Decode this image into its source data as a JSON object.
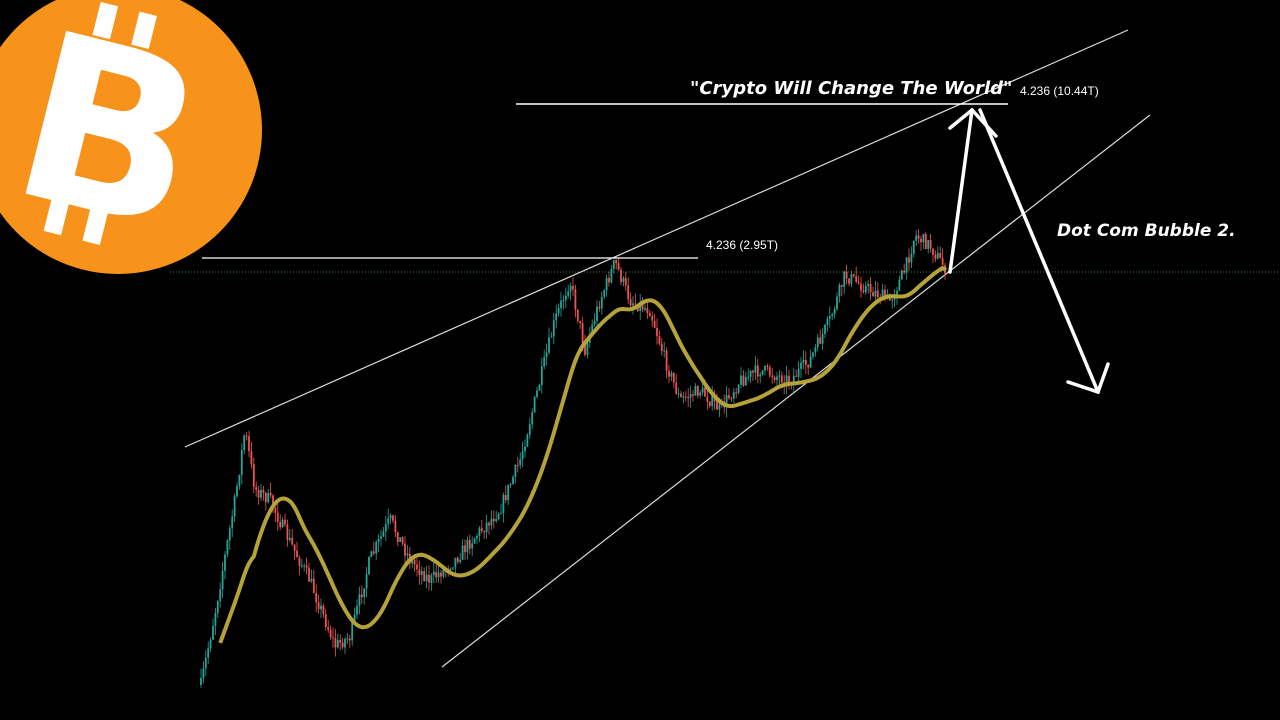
{
  "logo": {
    "name": "bitcoin-logo",
    "text": "₿",
    "color": "#F7931A"
  },
  "annotations": {
    "top_quote": "\"Crypto Will Change The World\"",
    "upper_fib": "4.236 (10.44T)",
    "lower_fib": "4.236 (2.95T)",
    "right_note": "Dot Com Bubble 2."
  },
  "colors": {
    "up": "#26a69a",
    "down": "#ef5350",
    "ma": "#b5a33a",
    "lines": "#ffffff",
    "support_dotted": "#2e8b2e",
    "background": "#000000"
  },
  "chart_data": {
    "type": "candlestick",
    "scale": "log",
    "grid": false,
    "unit": "T",
    "levels": [
      2.95,
      10.44
    ],
    "close_path": [
      0.091,
      0.17,
      0.42,
      0.74,
      0.46,
      0.42,
      0.3,
      0.22,
      0.13,
      0.14,
      0.26,
      0.36,
      0.26,
      0.22,
      0.26,
      0.3,
      0.39,
      0.58,
      1.1,
      1.79,
      2.47,
      1.41,
      2.1,
      2.86,
      2.1,
      1.94,
      1.3,
      0.94,
      1.02,
      0.87,
      1.1,
      1.2,
      1.1,
      1.3,
      1.79,
      2.57,
      2.28,
      2.1,
      2.68,
      3.55,
      3.27,
      2.72
    ],
    "projection": [
      2.72,
      10.44,
      0.9
    ]
  }
}
